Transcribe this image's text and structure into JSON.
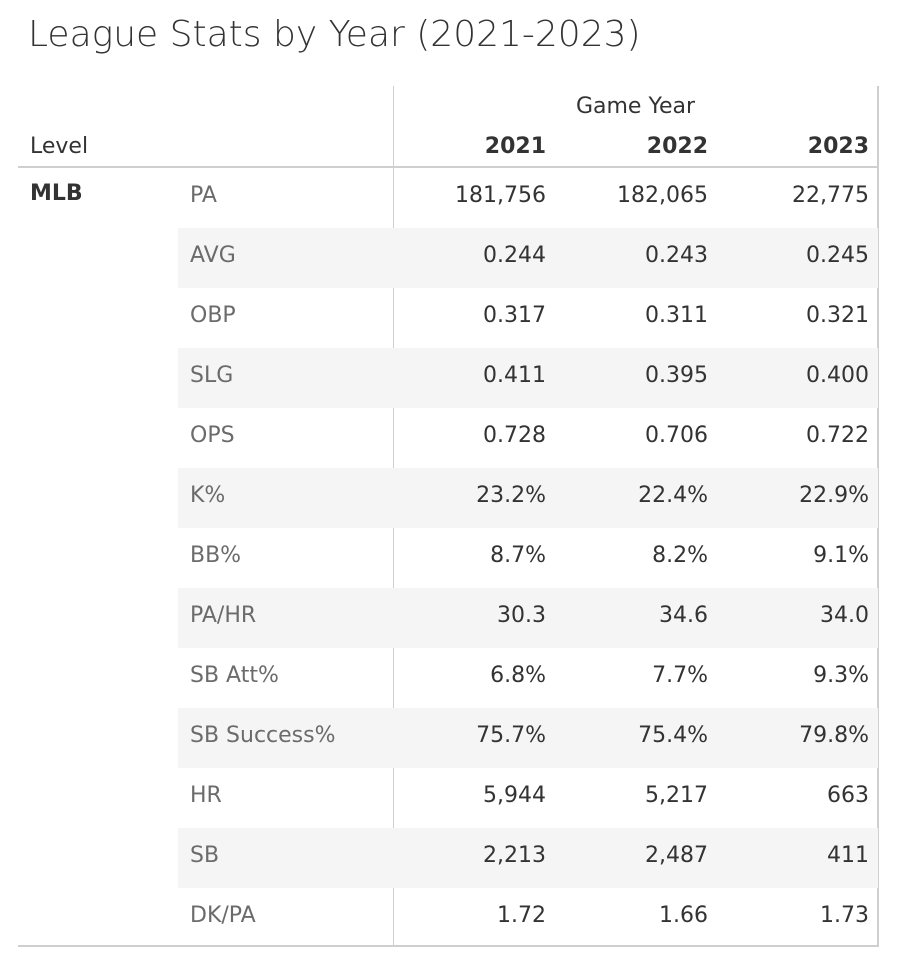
{
  "title": "League Stats by Year (2021-2023)",
  "column_group_label": "Game Year",
  "row_header_label": "Level",
  "level": "MLB",
  "chart_data": {
    "type": "table",
    "title": "League Stats by Year (2021-2023)",
    "column_group": "Game Year",
    "columns": [
      "2021",
      "2022",
      "2023"
    ],
    "row_dimension": "Level",
    "level": "MLB",
    "rows": [
      {
        "measure": "PA",
        "values": [
          "181,756",
          "182,065",
          "22,775"
        ]
      },
      {
        "measure": "AVG",
        "values": [
          "0.244",
          "0.243",
          "0.245"
        ]
      },
      {
        "measure": "OBP",
        "values": [
          "0.317",
          "0.311",
          "0.321"
        ]
      },
      {
        "measure": "SLG",
        "values": [
          "0.411",
          "0.395",
          "0.400"
        ]
      },
      {
        "measure": "OPS",
        "values": [
          "0.728",
          "0.706",
          "0.722"
        ]
      },
      {
        "measure": "K%",
        "values": [
          "23.2%",
          "22.4%",
          "22.9%"
        ]
      },
      {
        "measure": "BB%",
        "values": [
          "8.7%",
          "8.2%",
          "9.1%"
        ]
      },
      {
        "measure": "PA/HR",
        "values": [
          "30.3",
          "34.6",
          "34.0"
        ]
      },
      {
        "measure": "SB Att%",
        "values": [
          "6.8%",
          "7.7%",
          "9.3%"
        ]
      },
      {
        "measure": "SB Success%",
        "values": [
          "75.7%",
          "75.4%",
          "79.8%"
        ]
      },
      {
        "measure": "HR",
        "values": [
          "5,944",
          "5,217",
          "663"
        ]
      },
      {
        "measure": "SB",
        "values": [
          "2,213",
          "2,487",
          "411"
        ]
      },
      {
        "measure": "DK/PA",
        "values": [
          "1.72",
          "1.66",
          "1.73"
        ]
      }
    ],
    "colors": {
      "text": "#333333",
      "measure_text": "#6b6b6b",
      "band": "#f5f5f5",
      "rule": "#cfcfcf"
    }
  }
}
